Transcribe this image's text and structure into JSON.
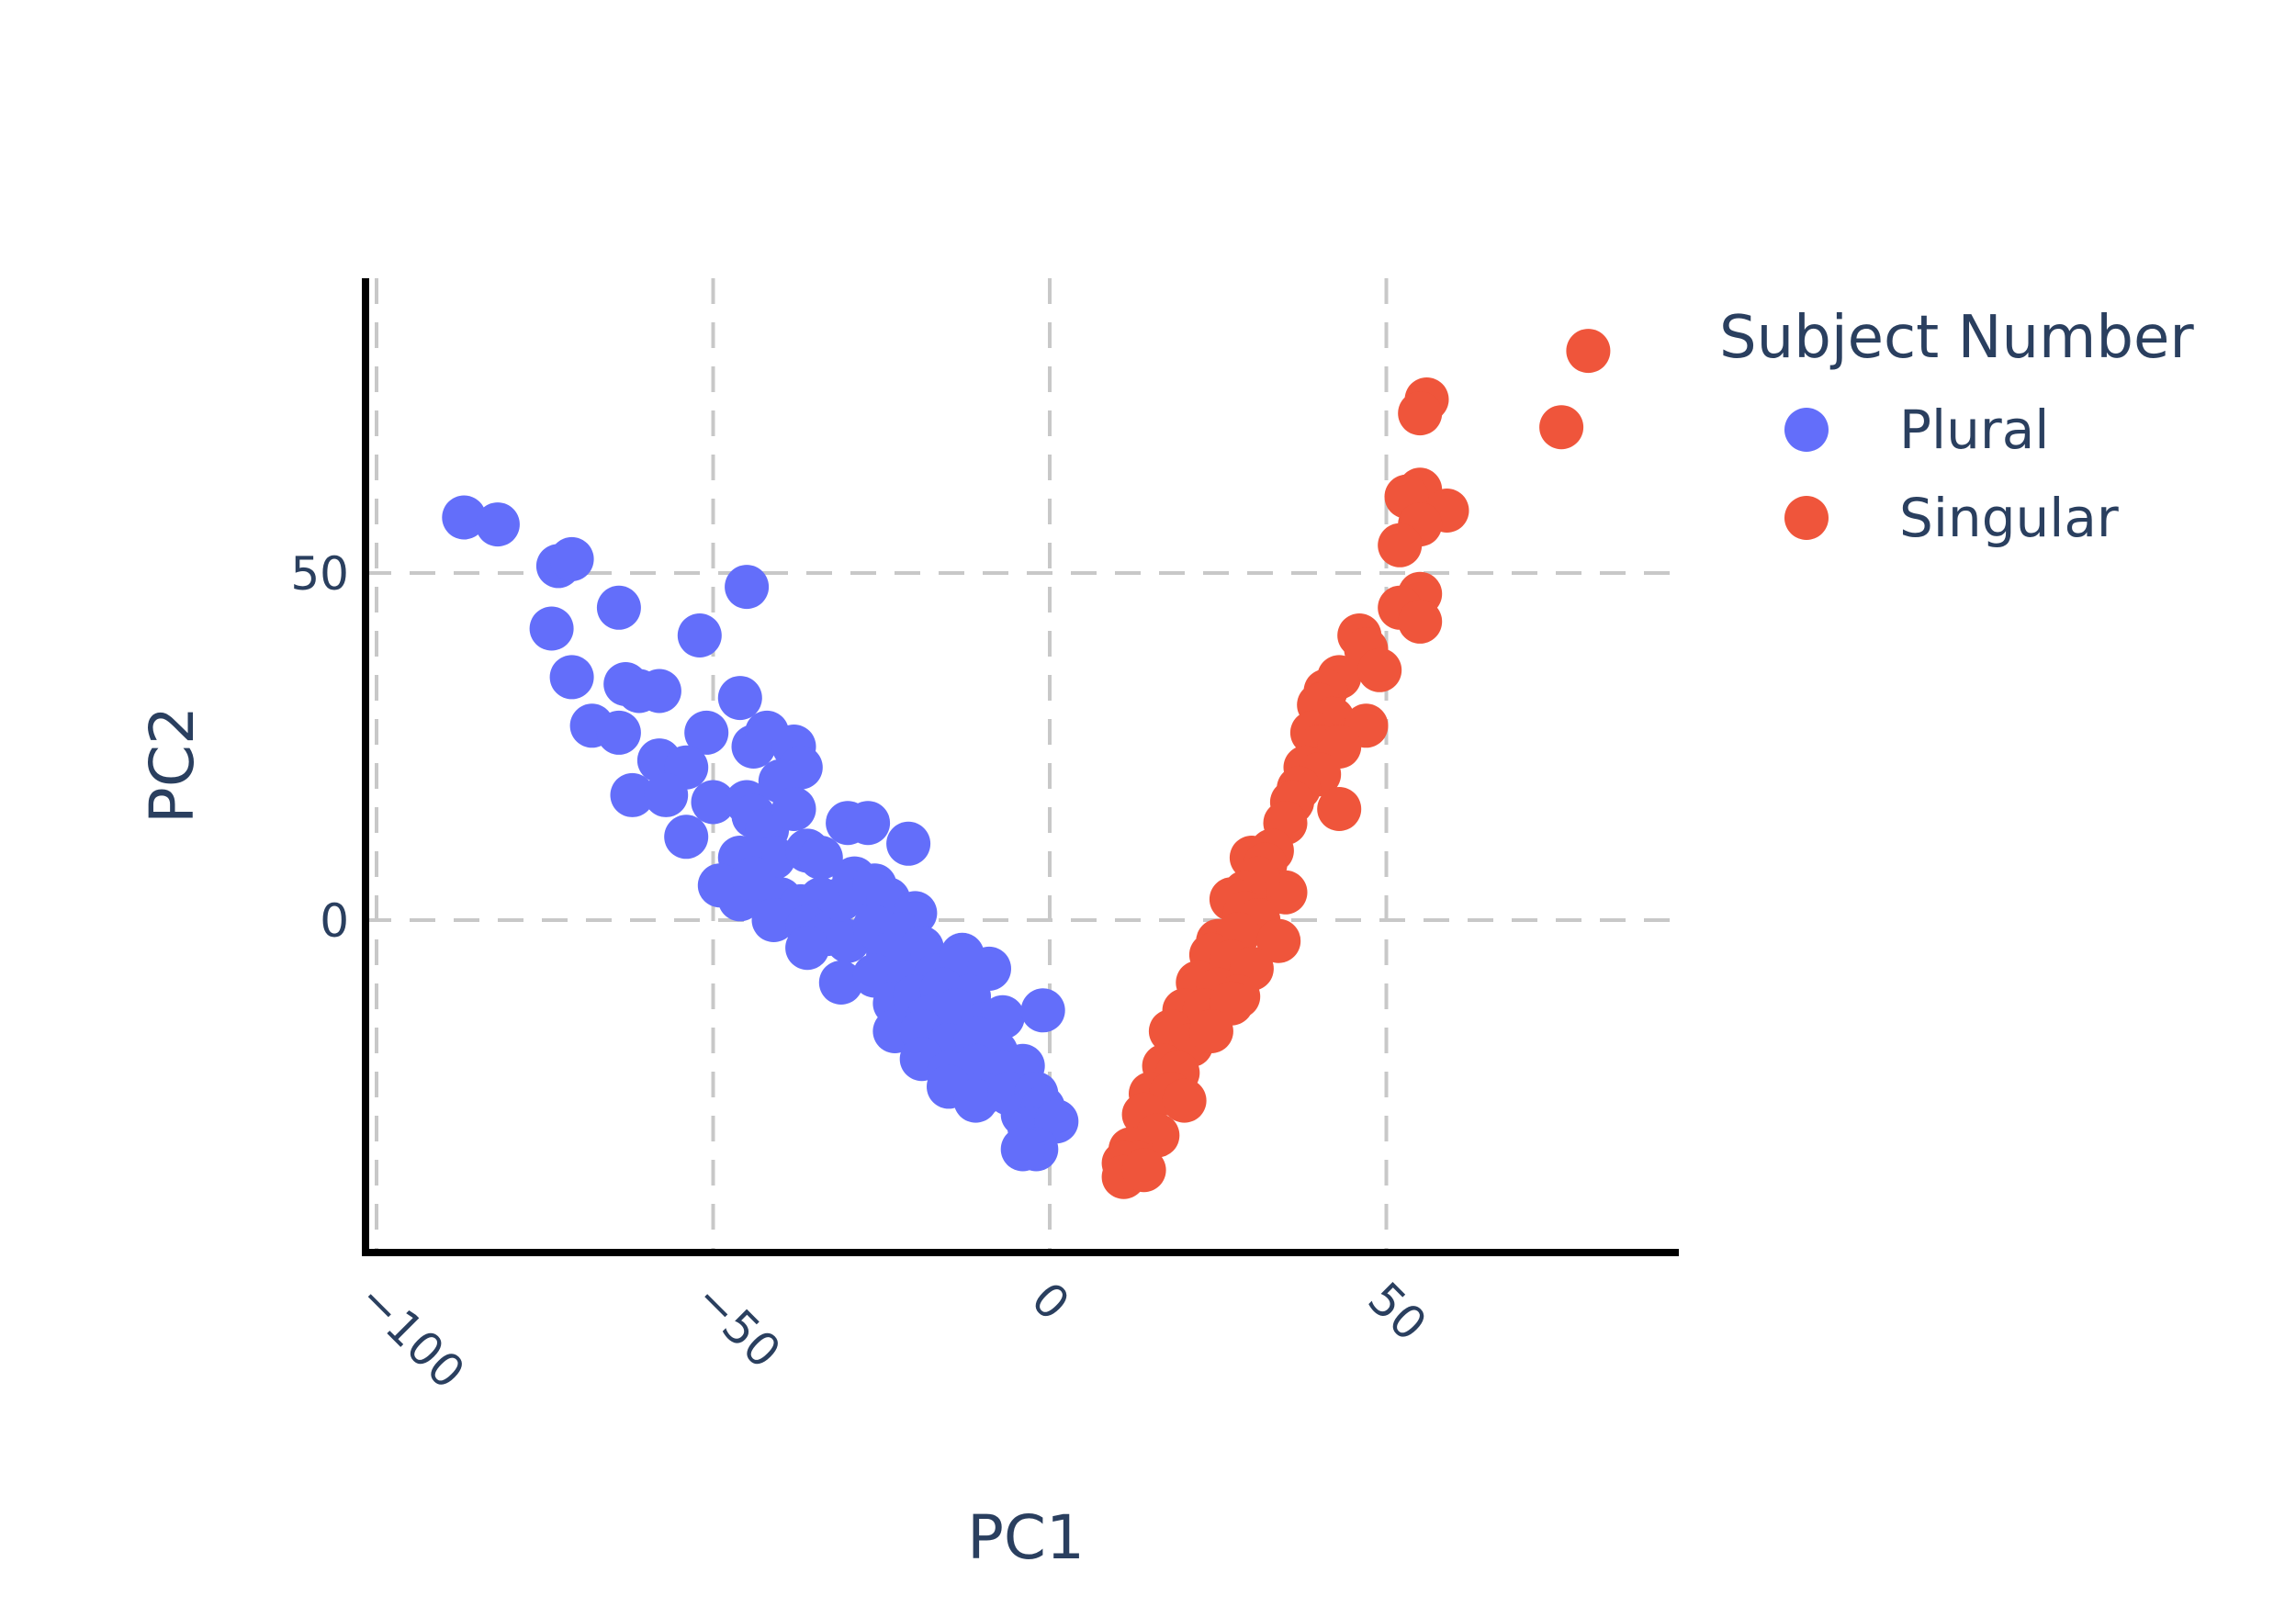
{
  "chart_data": {
    "type": "scatter",
    "title": "",
    "xlabel": "PC1",
    "ylabel": "PC2",
    "xlim": [
      -103,
      93
    ],
    "ylim": [
      -48,
      93
    ],
    "x_ticks": [
      -100,
      -50,
      0,
      50
    ],
    "x_tick_labels": [
      "−100",
      "−50",
      "0",
      "50"
    ],
    "y_ticks": [
      0,
      50
    ],
    "y_tick_labels": [
      "0",
      "50"
    ],
    "grid": true,
    "legend_title": "Subject Number",
    "legend_position": "right",
    "series": [
      {
        "name": "Plural",
        "color": "#636efa",
        "points": [
          [
            -87,
            58
          ],
          [
            -82,
            57
          ],
          [
            -73,
            51
          ],
          [
            -71,
            52
          ],
          [
            -74,
            42
          ],
          [
            -64,
            45
          ],
          [
            -52,
            41
          ],
          [
            -45,
            48
          ],
          [
            -71,
            35
          ],
          [
            -63,
            34
          ],
          [
            -68,
            28
          ],
          [
            -64,
            27
          ],
          [
            -58,
            33
          ],
          [
            -61,
            33
          ],
          [
            -51,
            27
          ],
          [
            -46,
            32
          ],
          [
            -58,
            23
          ],
          [
            -54,
            22
          ],
          [
            -62,
            18
          ],
          [
            -57,
            18
          ],
          [
            -50,
            17
          ],
          [
            -54,
            12
          ],
          [
            -45,
            17
          ],
          [
            -44,
            25
          ],
          [
            -42,
            27
          ],
          [
            -38,
            25
          ],
          [
            -37,
            22
          ],
          [
            -40,
            20
          ],
          [
            -44,
            15
          ],
          [
            -42,
            13
          ],
          [
            -38,
            16
          ],
          [
            -41,
            9
          ],
          [
            -36,
            10
          ],
          [
            -34,
            9
          ],
          [
            -46,
            9
          ],
          [
            -49,
            5
          ],
          [
            -46,
            3
          ],
          [
            -44,
            6
          ],
          [
            -40,
            3
          ],
          [
            -37,
            2
          ],
          [
            -34,
            3
          ],
          [
            -41,
            0
          ],
          [
            -36,
            -1
          ],
          [
            -33,
            -2
          ],
          [
            -36,
            -4
          ],
          [
            -30,
            -3
          ],
          [
            -31,
            3
          ],
          [
            -29,
            6
          ],
          [
            -28,
            4
          ],
          [
            -26,
            5
          ],
          [
            -24,
            3
          ],
          [
            -20,
            1
          ],
          [
            -26,
            -1
          ],
          [
            -22,
            -2
          ],
          [
            -19,
            -4
          ],
          [
            -24,
            -5
          ],
          [
            -31,
            -9
          ],
          [
            -26,
            -8
          ],
          [
            -21,
            -9
          ],
          [
            -17,
            -8
          ],
          [
            -13,
            -5
          ],
          [
            -9,
            -7
          ],
          [
            -23,
            -12
          ],
          [
            -20,
            -11
          ],
          [
            -16,
            -10
          ],
          [
            -12,
            -11
          ],
          [
            -18,
            -14
          ],
          [
            -14,
            -13
          ],
          [
            -10,
            -15
          ],
          [
            -7,
            -14
          ],
          [
            -23,
            -16
          ],
          [
            -19,
            -16
          ],
          [
            -15,
            -18
          ],
          [
            -11,
            -17
          ],
          [
            -8,
            -19
          ],
          [
            -4,
            -21
          ],
          [
            -19,
            -20
          ],
          [
            -15,
            -22
          ],
          [
            -11,
            -21
          ],
          [
            -7,
            -22
          ],
          [
            -15,
            -24
          ],
          [
            -10,
            -25
          ],
          [
            -11,
            -26
          ],
          [
            -6,
            -25
          ],
          [
            -2,
            -25
          ],
          [
            -4,
            -28
          ],
          [
            -1,
            -27
          ],
          [
            -3,
            -30
          ],
          [
            1,
            -29
          ],
          [
            -2,
            -33
          ],
          [
            -4,
            -33
          ],
          [
            -1,
            -13
          ],
          [
            -30,
            14
          ],
          [
            -27,
            14
          ],
          [
            -21,
            11
          ]
        ]
      },
      {
        "name": "Singular",
        "color": "#ef553b",
        "points": [
          [
            80,
            82
          ],
          [
            76,
            71
          ],
          [
            56,
            75
          ],
          [
            55,
            73
          ],
          [
            55,
            62
          ],
          [
            53,
            61
          ],
          [
            59,
            59
          ],
          [
            55,
            57
          ],
          [
            52,
            54
          ],
          [
            55,
            47
          ],
          [
            52,
            45
          ],
          [
            55,
            43
          ],
          [
            46,
            41
          ],
          [
            47,
            39
          ],
          [
            43,
            35
          ],
          [
            49,
            36
          ],
          [
            41,
            33
          ],
          [
            40,
            31
          ],
          [
            42,
            29
          ],
          [
            47,
            28
          ],
          [
            39,
            27
          ],
          [
            40,
            25
          ],
          [
            43,
            25
          ],
          [
            38,
            22
          ],
          [
            40,
            21
          ],
          [
            37,
            19
          ],
          [
            36,
            17
          ],
          [
            43,
            16
          ],
          [
            35,
            14
          ],
          [
            33,
            10
          ],
          [
            30,
            9
          ],
          [
            32,
            8
          ],
          [
            35,
            4
          ],
          [
            31,
            6
          ],
          [
            29,
            4
          ],
          [
            27,
            3
          ],
          [
            29,
            1
          ],
          [
            31,
            0
          ],
          [
            25,
            -3
          ],
          [
            28,
            -2
          ],
          [
            34,
            -3
          ],
          [
            24,
            -5
          ],
          [
            27,
            -6
          ],
          [
            30,
            -7
          ],
          [
            22,
            -9
          ],
          [
            25,
            -10
          ],
          [
            28,
            -11
          ],
          [
            20,
            -13
          ],
          [
            23,
            -13
          ],
          [
            27,
            -12
          ],
          [
            18,
            -16
          ],
          [
            21,
            -18
          ],
          [
            24,
            -16
          ],
          [
            17,
            -21
          ],
          [
            19,
            -22
          ],
          [
            15,
            -25
          ],
          [
            18,
            -25
          ],
          [
            20,
            -26
          ],
          [
            14,
            -28
          ],
          [
            16,
            -31
          ],
          [
            12,
            -33
          ],
          [
            13,
            -35
          ],
          [
            11,
            -35
          ],
          [
            11,
            -37
          ],
          [
            14,
            -36
          ]
        ]
      }
    ]
  }
}
